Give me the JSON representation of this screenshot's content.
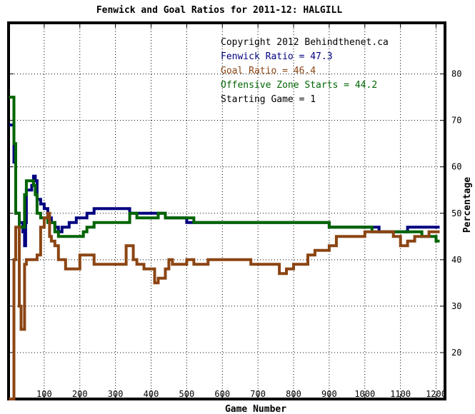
{
  "chart_data": {
    "type": "line",
    "title": "Fenwick and Goal Ratios for 2011-12: HALGILL",
    "xlabel": "Game Number",
    "ylabel": "Percentage",
    "xlim": [
      0,
      1225
    ],
    "ylim": [
      10,
      91
    ],
    "xticks": [
      100,
      200,
      300,
      400,
      500,
      600,
      700,
      800,
      900,
      1000,
      1100,
      1200
    ],
    "yticks": [
      20,
      30,
      40,
      50,
      60,
      70,
      80
    ],
    "grid": true,
    "annotations": [
      {
        "text": "Copyright 2012 Behindthenet.ca",
        "color": "#000000"
      },
      {
        "text": "Fenwick Ratio = 47.3",
        "color": "#000080"
      },
      {
        "text": "Goal Ratio = 46.4",
        "color": "#8b4513"
      },
      {
        "text": "Offensive Zone Starts = 44.2",
        "color": "#006400"
      },
      {
        "text": "Starting Game = 1",
        "color": "#000000"
      }
    ],
    "series": [
      {
        "name": "Fenwick Ratio",
        "color": "#000080",
        "points": [
          [
            1,
            69
          ],
          [
            12,
            69
          ],
          [
            15,
            61
          ],
          [
            20,
            50
          ],
          [
            30,
            48
          ],
          [
            40,
            46
          ],
          [
            45,
            43
          ],
          [
            48,
            48
          ],
          [
            50,
            55
          ],
          [
            60,
            55
          ],
          [
            65,
            56
          ],
          [
            70,
            58
          ],
          [
            75,
            57
          ],
          [
            80,
            53
          ],
          [
            90,
            52
          ],
          [
            100,
            51
          ],
          [
            110,
            49
          ],
          [
            120,
            48
          ],
          [
            130,
            47
          ],
          [
            140,
            46
          ],
          [
            150,
            47
          ],
          [
            170,
            48
          ],
          [
            190,
            49
          ],
          [
            210,
            49
          ],
          [
            220,
            50
          ],
          [
            240,
            51
          ],
          [
            260,
            51
          ],
          [
            280,
            51
          ],
          [
            300,
            51
          ],
          [
            320,
            51
          ],
          [
            340,
            50
          ],
          [
            360,
            50
          ],
          [
            380,
            50
          ],
          [
            400,
            50
          ],
          [
            420,
            50
          ],
          [
            440,
            49
          ],
          [
            460,
            49
          ],
          [
            480,
            49
          ],
          [
            500,
            48
          ],
          [
            520,
            48
          ],
          [
            540,
            48
          ],
          [
            560,
            48
          ],
          [
            580,
            48
          ],
          [
            600,
            48
          ],
          [
            620,
            48
          ],
          [
            640,
            48
          ],
          [
            660,
            48
          ],
          [
            680,
            48
          ],
          [
            700,
            48
          ],
          [
            720,
            48
          ],
          [
            740,
            48
          ],
          [
            760,
            48
          ],
          [
            780,
            48
          ],
          [
            800,
            48
          ],
          [
            820,
            48
          ],
          [
            840,
            48
          ],
          [
            860,
            48
          ],
          [
            880,
            48
          ],
          [
            900,
            47
          ],
          [
            920,
            47
          ],
          [
            940,
            47
          ],
          [
            960,
            47
          ],
          [
            980,
            47
          ],
          [
            1000,
            47
          ],
          [
            1020,
            47
          ],
          [
            1040,
            46
          ],
          [
            1060,
            46
          ],
          [
            1080,
            46
          ],
          [
            1100,
            46
          ],
          [
            1120,
            47
          ],
          [
            1140,
            47
          ],
          [
            1160,
            47
          ],
          [
            1180,
            47
          ],
          [
            1200,
            47
          ],
          [
            1210,
            47
          ]
        ]
      },
      {
        "name": "Goal Ratio",
        "color": "#8b4513",
        "points": [
          [
            1,
            10
          ],
          [
            12,
            10
          ],
          [
            15,
            40
          ],
          [
            20,
            47
          ],
          [
            25,
            47
          ],
          [
            30,
            30
          ],
          [
            35,
            25
          ],
          [
            40,
            25
          ],
          [
            45,
            39
          ],
          [
            50,
            40
          ],
          [
            60,
            40
          ],
          [
            70,
            40
          ],
          [
            80,
            41
          ],
          [
            90,
            47
          ],
          [
            100,
            49
          ],
          [
            110,
            50
          ],
          [
            115,
            45
          ],
          [
            120,
            44
          ],
          [
            130,
            43
          ],
          [
            140,
            40
          ],
          [
            150,
            40
          ],
          [
            160,
            38
          ],
          [
            180,
            38
          ],
          [
            200,
            41
          ],
          [
            220,
            41
          ],
          [
            240,
            39
          ],
          [
            260,
            39
          ],
          [
            280,
            39
          ],
          [
            300,
            39
          ],
          [
            320,
            39
          ],
          [
            330,
            43
          ],
          [
            340,
            43
          ],
          [
            350,
            40
          ],
          [
            360,
            39
          ],
          [
            380,
            38
          ],
          [
            400,
            38
          ],
          [
            410,
            35
          ],
          [
            420,
            36
          ],
          [
            440,
            38
          ],
          [
            450,
            40
          ],
          [
            460,
            39
          ],
          [
            480,
            39
          ],
          [
            500,
            40
          ],
          [
            520,
            39
          ],
          [
            540,
            39
          ],
          [
            560,
            40
          ],
          [
            580,
            40
          ],
          [
            600,
            40
          ],
          [
            620,
            40
          ],
          [
            640,
            40
          ],
          [
            660,
            40
          ],
          [
            680,
            39
          ],
          [
            700,
            39
          ],
          [
            720,
            39
          ],
          [
            740,
            39
          ],
          [
            760,
            37
          ],
          [
            780,
            38
          ],
          [
            800,
            39
          ],
          [
            820,
            39
          ],
          [
            840,
            41
          ],
          [
            860,
            42
          ],
          [
            880,
            42
          ],
          [
            900,
            43
          ],
          [
            920,
            45
          ],
          [
            940,
            45
          ],
          [
            960,
            45
          ],
          [
            980,
            45
          ],
          [
            1000,
            46
          ],
          [
            1020,
            46
          ],
          [
            1040,
            46
          ],
          [
            1060,
            46
          ],
          [
            1080,
            45
          ],
          [
            1100,
            43
          ],
          [
            1120,
            44
          ],
          [
            1140,
            45
          ],
          [
            1160,
            45
          ],
          [
            1180,
            46
          ],
          [
            1200,
            46
          ],
          [
            1210,
            46
          ]
        ]
      },
      {
        "name": "Offensive Zone Starts",
        "color": "#006400",
        "points": [
          [
            1,
            75
          ],
          [
            12,
            75
          ],
          [
            15,
            65
          ],
          [
            20,
            50
          ],
          [
            30,
            47
          ],
          [
            40,
            47
          ],
          [
            45,
            54
          ],
          [
            50,
            57
          ],
          [
            60,
            57
          ],
          [
            70,
            56
          ],
          [
            75,
            54
          ],
          [
            80,
            50
          ],
          [
            90,
            49
          ],
          [
            100,
            49
          ],
          [
            110,
            48
          ],
          [
            120,
            48
          ],
          [
            130,
            46
          ],
          [
            140,
            45
          ],
          [
            160,
            45
          ],
          [
            180,
            45
          ],
          [
            200,
            45
          ],
          [
            210,
            46
          ],
          [
            220,
            47
          ],
          [
            240,
            48
          ],
          [
            260,
            48
          ],
          [
            280,
            48
          ],
          [
            300,
            48
          ],
          [
            320,
            48
          ],
          [
            340,
            50
          ],
          [
            360,
            49
          ],
          [
            380,
            49
          ],
          [
            400,
            49
          ],
          [
            420,
            50
          ],
          [
            440,
            49
          ],
          [
            460,
            49
          ],
          [
            480,
            49
          ],
          [
            500,
            49
          ],
          [
            520,
            48
          ],
          [
            540,
            48
          ],
          [
            560,
            48
          ],
          [
            580,
            48
          ],
          [
            600,
            48
          ],
          [
            620,
            48
          ],
          [
            640,
            48
          ],
          [
            660,
            48
          ],
          [
            680,
            48
          ],
          [
            700,
            48
          ],
          [
            720,
            48
          ],
          [
            740,
            48
          ],
          [
            760,
            48
          ],
          [
            780,
            48
          ],
          [
            800,
            48
          ],
          [
            820,
            48
          ],
          [
            840,
            48
          ],
          [
            860,
            48
          ],
          [
            880,
            48
          ],
          [
            900,
            47
          ],
          [
            920,
            47
          ],
          [
            940,
            47
          ],
          [
            960,
            47
          ],
          [
            980,
            47
          ],
          [
            1000,
            47
          ],
          [
            1020,
            46
          ],
          [
            1040,
            46
          ],
          [
            1060,
            46
          ],
          [
            1080,
            46
          ],
          [
            1100,
            46
          ],
          [
            1120,
            46
          ],
          [
            1140,
            46
          ],
          [
            1160,
            45
          ],
          [
            1180,
            45
          ],
          [
            1200,
            44
          ],
          [
            1210,
            44
          ]
        ]
      }
    ]
  }
}
